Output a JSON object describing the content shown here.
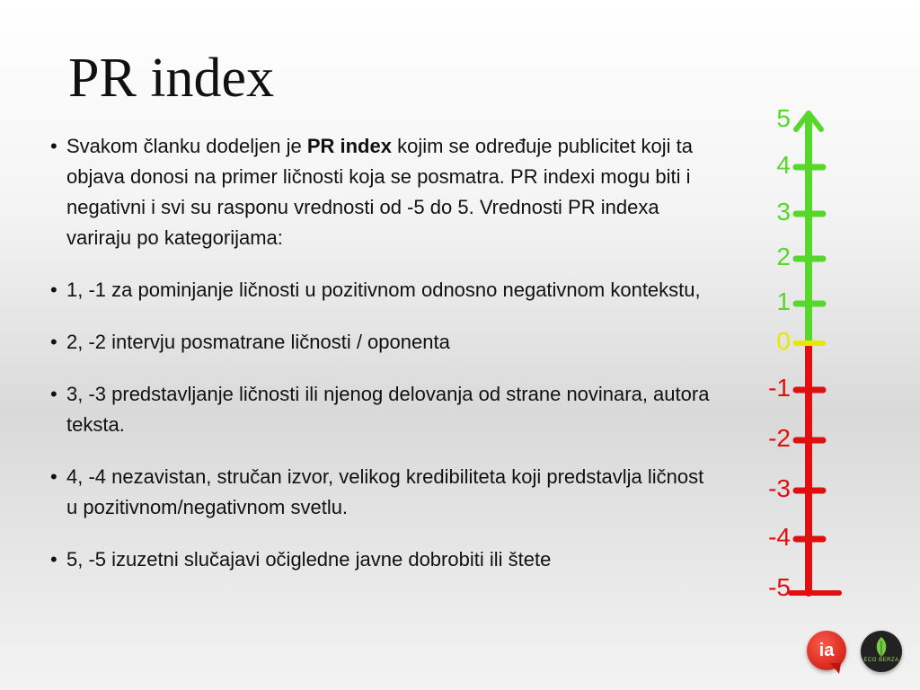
{
  "title": "PR index",
  "bullets": [
    {
      "before": "Svakom članku dodeljen je ",
      "bold": "PR index",
      "after": " kojim se određuje publicitet koji ta objava donosi na primer ličnosti koja se posmatra. PR indexi mogu biti i negativni i svi su rasponu vrednosti od -5 do 5.  Vrednosti PR indexa variraju po kategorijama:"
    },
    {
      "before": "1, -1 za pominjanje ličnosti u pozitivnom odnosno negativnom kontekstu,",
      "bold": "",
      "after": ""
    },
    {
      "before": "2, -2 intervju posmatrane ličnosti / oponenta",
      "bold": "",
      "after": ""
    },
    {
      "before": "3, -3 predstavljanje ličnosti ili njenog delovanja od strane novinara, autora teksta.",
      "bold": "",
      "after": ""
    },
    {
      "before": "4, -4 nezavistan, stručan izvor, velikog kredibiliteta koji predstavlja ličnost u pozitivnom/negativnom svetlu.",
      "bold": "",
      "after": ""
    },
    {
      "before": "5, -5 izuzetni slučajavi očigledne javne dobrobiti ili štete",
      "bold": "",
      "after": ""
    }
  ],
  "scale": {
    "labels": [
      "5",
      "4",
      "3",
      "2",
      "1",
      "0",
      "-1",
      "-2",
      "-3",
      "-4",
      "-5"
    ],
    "colors": {
      "positive": "#55d82a",
      "zero": "#e8e800",
      "negative": "#e01010"
    }
  },
  "logos": {
    "ia_text": "ia",
    "eco_text": "ECO BERZA"
  }
}
